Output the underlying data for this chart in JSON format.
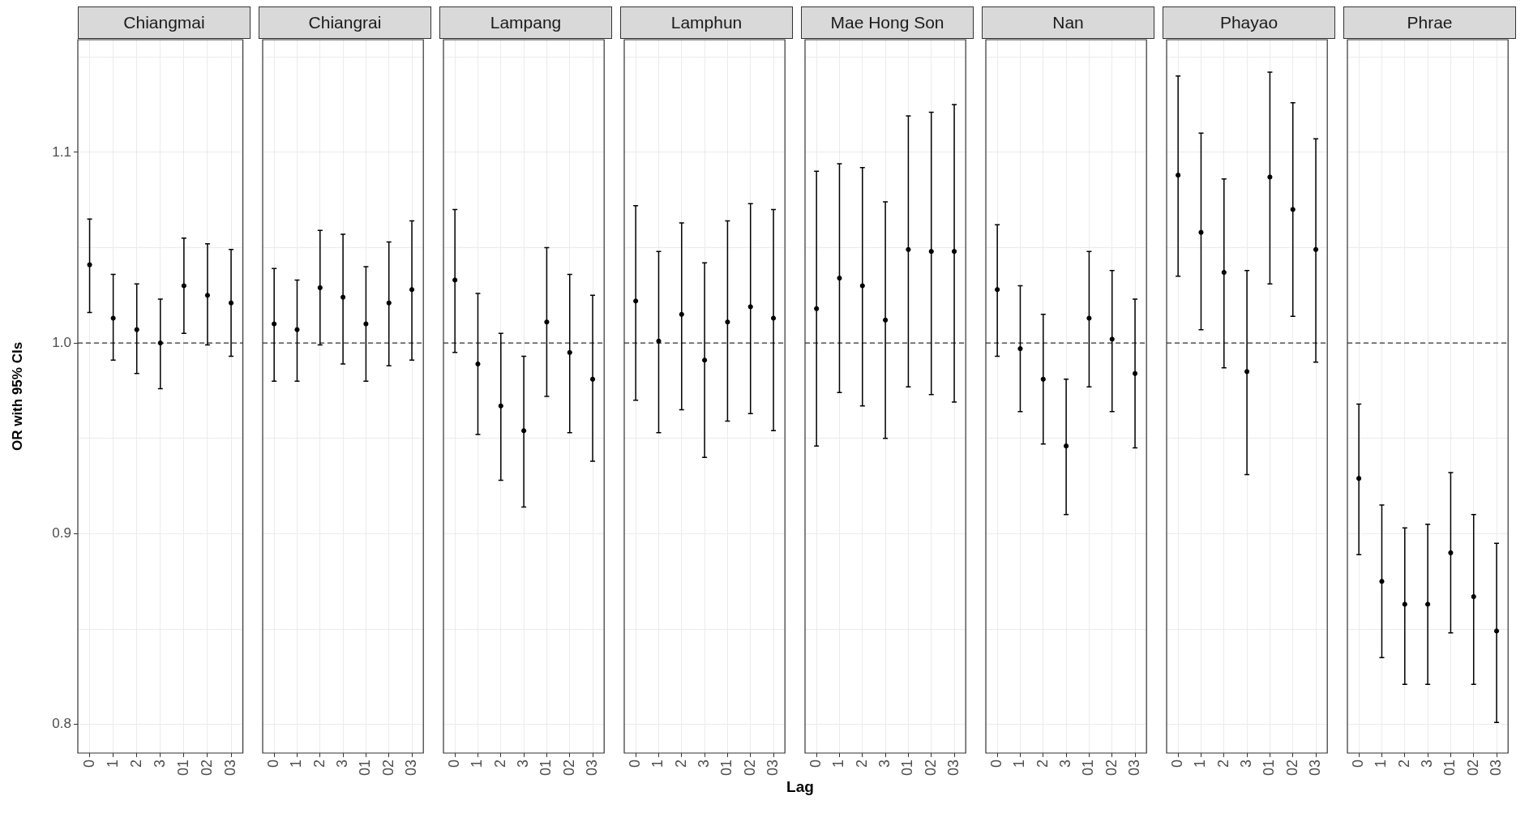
{
  "chart_data": [
    {
      "type": "scatter",
      "title": "Chiangmai",
      "ylabel": "OR with 95% CIs",
      "categories": [
        "0",
        "1",
        "2",
        "3",
        "01",
        "02",
        "03"
      ],
      "series": [
        {
          "color": "#000000",
          "values": [
            1.041,
            1.013,
            1.007,
            1.0,
            1.03,
            1.025,
            1.021
          ],
          "errors": [
            [
              1.016,
              1.065
            ],
            [
              0.991,
              1.036
            ],
            [
              0.984,
              1.031
            ],
            [
              0.976,
              1.023
            ],
            [
              1.005,
              1.055
            ],
            [
              0.999,
              1.052
            ],
            [
              0.993,
              1.049
            ]
          ]
        }
      ],
      "ylim": [
        0.785,
        1.159
      ],
      "yticks": [
        0.8,
        {
          "value": 0.85,
          "label": null
        },
        0.9,
        {
          "value": 0.95,
          "label": null
        },
        {
          "value": 1,
          "label": "1.0"
        },
        {
          "value": 1.05,
          "label": null
        },
        1.1,
        {
          "value": 1.15,
          "label": null
        }
      ],
      "grid": true,
      "marker": "circle",
      "ref_lines": [
        {
          "axis": "y",
          "value": 1,
          "line_style": "dashed",
          "color": "#333333"
        }
      ]
    },
    {
      "type": "scatter",
      "title": "Chiangrai",
      "categories": [
        "0",
        "1",
        "2",
        "3",
        "01",
        "02",
        "03"
      ],
      "series": [
        {
          "color": "#000000",
          "values": [
            1.01,
            1.007,
            1.029,
            1.024,
            1.01,
            1.021,
            1.028
          ],
          "errors": [
            [
              0.98,
              1.039
            ],
            [
              0.98,
              1.033
            ],
            [
              0.999,
              1.059
            ],
            [
              0.989,
              1.057
            ],
            [
              0.98,
              1.04
            ],
            [
              0.988,
              1.053
            ],
            [
              0.991,
              1.064
            ]
          ]
        }
      ],
      "ylim": [
        0.785,
        1.159
      ],
      "yticks": [
        0.8,
        0.85,
        0.9,
        0.95,
        1,
        1.05,
        1.1,
        1.15
      ],
      "tick_labels": "x",
      "grid": true,
      "marker": "circle",
      "ref_lines": [
        {
          "axis": "y",
          "value": 1,
          "line_style": "dashed",
          "color": "#333333"
        }
      ]
    },
    {
      "type": "scatter",
      "title": "Lampang",
      "categories": [
        "0",
        "1",
        "2",
        "3",
        "01",
        "02",
        "03"
      ],
      "series": [
        {
          "color": "#000000",
          "values": [
            1.033,
            0.989,
            0.967,
            0.954,
            1.011,
            0.995,
            0.981
          ],
          "errors": [
            [
              0.995,
              1.07
            ],
            [
              0.952,
              1.026
            ],
            [
              0.928,
              1.005
            ],
            [
              0.914,
              0.993
            ],
            [
              0.972,
              1.05
            ],
            [
              0.953,
              1.036
            ],
            [
              0.938,
              1.025
            ]
          ]
        }
      ],
      "ylim": [
        0.785,
        1.159
      ],
      "yticks": [
        0.8,
        0.85,
        0.9,
        0.95,
        1,
        1.05,
        1.1,
        1.15
      ],
      "tick_labels": "x",
      "grid": true,
      "marker": "circle",
      "ref_lines": [
        {
          "axis": "y",
          "value": 1,
          "line_style": "dashed",
          "color": "#333333"
        }
      ]
    },
    {
      "type": "scatter",
      "title": "Lamphun",
      "xlabel": "Lag",
      "categories": [
        "0",
        "1",
        "2",
        "3",
        "01",
        "02",
        "03"
      ],
      "series": [
        {
          "color": "#000000",
          "values": [
            1.022,
            1.001,
            1.015,
            0.991,
            1.011,
            1.019,
            1.013
          ],
          "errors": [
            [
              0.97,
              1.072
            ],
            [
              0.953,
              1.048
            ],
            [
              0.965,
              1.063
            ],
            [
              0.94,
              1.042
            ],
            [
              0.959,
              1.064
            ],
            [
              0.963,
              1.073
            ],
            [
              0.954,
              1.07
            ]
          ]
        }
      ],
      "ylim": [
        0.785,
        1.159
      ],
      "yticks": [
        0.8,
        0.85,
        0.9,
        0.95,
        1,
        1.05,
        1.1,
        1.15
      ],
      "tick_labels": "x",
      "grid": true,
      "marker": "circle",
      "ref_lines": [
        {
          "axis": "y",
          "value": 1,
          "line_style": "dashed",
          "color": "#333333"
        }
      ]
    },
    {
      "type": "scatter",
      "title": "Mae Hong Son",
      "categories": [
        "0",
        "1",
        "2",
        "3",
        "01",
        "02",
        "03"
      ],
      "series": [
        {
          "color": "#000000",
          "values": [
            1.018,
            1.034,
            1.03,
            1.012,
            1.049,
            1.048,
            1.048
          ],
          "errors": [
            [
              0.946,
              1.09
            ],
            [
              0.974,
              1.094
            ],
            [
              0.967,
              1.092
            ],
            [
              0.95,
              1.074
            ],
            [
              0.977,
              1.119
            ],
            [
              0.973,
              1.121
            ],
            [
              0.969,
              1.125
            ]
          ]
        }
      ],
      "ylim": [
        0.785,
        1.159
      ],
      "yticks": [
        0.8,
        0.85,
        0.9,
        0.95,
        1,
        1.05,
        1.1,
        1.15
      ],
      "tick_labels": "x",
      "grid": true,
      "marker": "circle",
      "ref_lines": [
        {
          "axis": "y",
          "value": 1,
          "line_style": "dashed",
          "color": "#333333"
        }
      ]
    },
    {
      "type": "scatter",
      "title": "Nan",
      "categories": [
        "0",
        "1",
        "2",
        "3",
        "01",
        "02",
        "03"
      ],
      "series": [
        {
          "color": "#000000",
          "values": [
            1.028,
            0.997,
            0.981,
            0.946,
            1.013,
            1.002,
            0.984
          ],
          "errors": [
            [
              0.993,
              1.062
            ],
            [
              0.964,
              1.03
            ],
            [
              0.947,
              1.015
            ],
            [
              0.91,
              0.981
            ],
            [
              0.977,
              1.048
            ],
            [
              0.964,
              1.038
            ],
            [
              0.945,
              1.023
            ]
          ]
        }
      ],
      "ylim": [
        0.785,
        1.159
      ],
      "yticks": [
        0.8,
        0.85,
        0.9,
        0.95,
        1,
        1.05,
        1.1,
        1.15
      ],
      "tick_labels": "x",
      "grid": true,
      "marker": "circle",
      "ref_lines": [
        {
          "axis": "y",
          "value": 1,
          "line_style": "dashed",
          "color": "#333333"
        }
      ]
    },
    {
      "type": "scatter",
      "title": "Phayao",
      "categories": [
        "0",
        "1",
        "2",
        "3",
        "01",
        "02",
        "03"
      ],
      "series": [
        {
          "color": "#000000",
          "values": [
            1.088,
            1.058,
            1.037,
            0.985,
            1.087,
            1.07,
            1.049
          ],
          "errors": [
            [
              1.035,
              1.14
            ],
            [
              1.007,
              1.11
            ],
            [
              0.987,
              1.086
            ],
            [
              0.931,
              1.038
            ],
            [
              1.031,
              1.142
            ],
            [
              1.014,
              1.126
            ],
            [
              0.99,
              1.107
            ]
          ]
        }
      ],
      "ylim": [
        0.785,
        1.159
      ],
      "yticks": [
        0.8,
        0.85,
        0.9,
        0.95,
        1,
        1.05,
        1.1,
        1.15
      ],
      "tick_labels": "x",
      "grid": true,
      "marker": "circle",
      "ref_lines": [
        {
          "axis": "y",
          "value": 1,
          "line_style": "dashed",
          "color": "#333333"
        }
      ]
    },
    {
      "type": "scatter",
      "title": "Phrae",
      "categories": [
        "0",
        "1",
        "2",
        "3",
        "01",
        "02",
        "03"
      ],
      "series": [
        {
          "color": "#000000",
          "values": [
            0.929,
            0.875,
            0.863,
            0.863,
            0.89,
            0.867,
            0.849
          ],
          "errors": [
            [
              0.889,
              0.968
            ],
            [
              0.835,
              0.915
            ],
            [
              0.821,
              0.903
            ],
            [
              0.821,
              0.905
            ],
            [
              0.848,
              0.932
            ],
            [
              0.821,
              0.91
            ],
            [
              0.801,
              0.895
            ]
          ]
        }
      ],
      "ylim": [
        0.785,
        1.159
      ],
      "yticks": [
        0.8,
        0.85,
        0.9,
        0.95,
        1,
        1.05,
        1.1,
        1.15
      ],
      "tick_labels": "x",
      "grid": true,
      "marker": "circle",
      "ref_lines": [
        {
          "axis": "y",
          "value": 1,
          "line_style": "dashed",
          "color": "#333333"
        }
      ]
    }
  ]
}
